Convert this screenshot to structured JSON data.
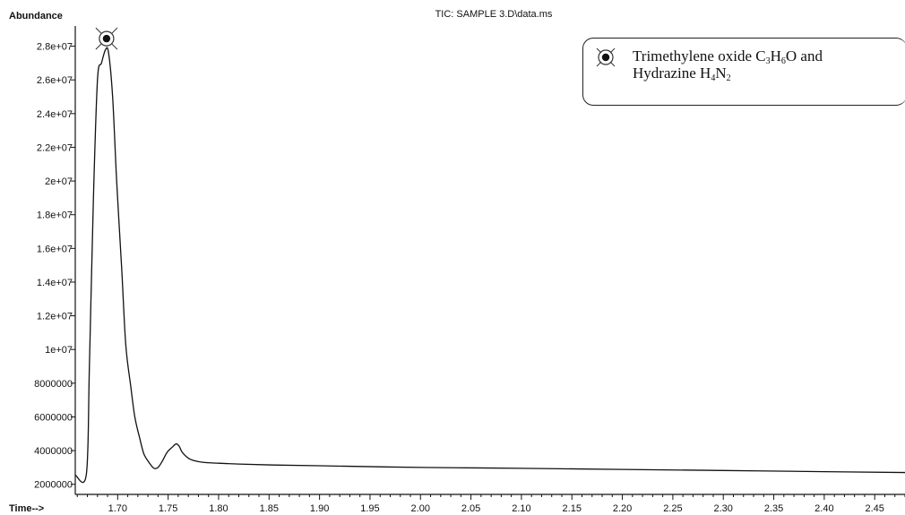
{
  "chart_data": {
    "type": "line",
    "title": "TIC: SAMPLE 3.D\\data.ms",
    "ylabel": "Abundance",
    "xlabel": "Time-->",
    "xlim": [
      1.658,
      2.48
    ],
    "ylim": [
      1400000,
      29200000
    ],
    "x_ticks": [
      "1.70",
      "1.75",
      "1.80",
      "1.85",
      "1.90",
      "1.95",
      "2.00",
      "2.05",
      "2.10",
      "2.15",
      "2.20",
      "2.25",
      "2.30",
      "2.35",
      "2.40",
      "2.45"
    ],
    "y_ticks": [
      "2000000",
      "4000000",
      "6000000",
      "8000000",
      "1e+07",
      "1.2e+07",
      "1.4e+07",
      "1.6e+07",
      "1.8e+07",
      "2e+07",
      "2.2e+07",
      "2.4e+07",
      "2.6e+07",
      "2.8e+07"
    ],
    "series": [
      {
        "x": [
          1.658,
          1.669,
          1.672,
          1.676,
          1.68,
          1.684,
          1.688,
          1.691,
          1.695,
          1.699,
          1.704,
          1.708,
          1.713,
          1.717,
          1.722,
          1.726,
          1.731,
          1.736,
          1.74,
          1.744,
          1.749,
          1.754,
          1.758,
          1.761,
          1.764,
          1.77,
          1.776,
          1.785,
          1.8,
          1.82,
          1.85,
          1.9,
          2.0,
          2.1,
          2.2,
          2.3,
          2.4,
          2.48
        ],
        "y": [
          2550000,
          2600000,
          9000000,
          19000000,
          26000000,
          27000000,
          27800000,
          27600000,
          25000000,
          20000000,
          14800000,
          10300000,
          7800000,
          6000000,
          4700000,
          3800000,
          3300000,
          2950000,
          3000000,
          3350000,
          3900000,
          4200000,
          4400000,
          4250000,
          3900000,
          3550000,
          3400000,
          3300000,
          3250000,
          3200000,
          3150000,
          3100000,
          3000000,
          2950000,
          2880000,
          2820000,
          2750000,
          2700000
        ]
      }
    ],
    "annotation": {
      "x": 1.689,
      "y": 28450000,
      "legend_text_1": "Trimethylene oxide C",
      "legend_sub_1": "3",
      "legend_text_2": "H",
      "legend_sub_2": "6",
      "legend_text_3": "O and",
      "legend_text_4": "Hydrazine H",
      "legend_sub_3": "4",
      "legend_text_5": "N",
      "legend_sub_4": "2"
    }
  }
}
